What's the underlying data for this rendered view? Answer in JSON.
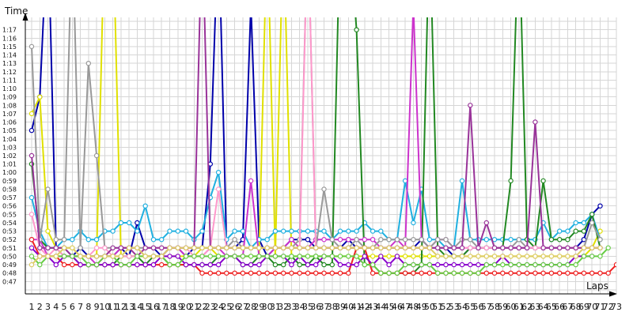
{
  "chart_data": {
    "type": "line",
    "ylabel": "Time",
    "xlabel": "Laps",
    "x": [
      1,
      2,
      3,
      4,
      5,
      6,
      7,
      8,
      9,
      10,
      11,
      12,
      13,
      14,
      15,
      16,
      17,
      18,
      19,
      20,
      21,
      22,
      23,
      24,
      25,
      26,
      27,
      28,
      29,
      30,
      31,
      32,
      33,
      34,
      35,
      36,
      37,
      38,
      39,
      40,
      41,
      42,
      43,
      44,
      45,
      46,
      47,
      48,
      49,
      50,
      51,
      52,
      53,
      54,
      55,
      56,
      57,
      58,
      59,
      60,
      61,
      62,
      63,
      64,
      65,
      66,
      67,
      68,
      69,
      70,
      71,
      72,
      73
    ],
    "xlim": [
      1,
      73
    ],
    "ylim": [
      46,
      80
    ],
    "y_ticks": [
      "0:47",
      "0:48",
      "0:49",
      "0:50",
      "0:51",
      "0:52",
      "0:53",
      "0:54",
      "0:55",
      "0:56",
      "0:57",
      "0:58",
      "0:59",
      "1:00",
      "1:01",
      "1:02",
      "1:03",
      "1:04",
      "1:05",
      "1:06",
      "1:07",
      "1:08",
      "1:09",
      "1:10",
      "1:11",
      "1:12",
      "1:13",
      "1:14",
      "1:15",
      "1:16",
      "1:17"
    ],
    "grid": true,
    "series": [
      {
        "color": "#0000aa",
        "values": [
          65,
          69,
          90,
          51,
          51,
          50,
          51,
          50,
          50,
          50,
          50,
          51,
          50,
          54,
          51,
          51,
          50,
          51,
          51,
          50,
          51,
          51,
          61,
          90,
          51,
          51,
          52,
          80,
          52,
          50,
          51,
          51,
          52,
          52,
          52,
          51,
          51,
          51,
          51,
          52,
          51,
          51,
          51,
          51,
          51,
          51,
          51,
          51,
          52,
          51,
          51,
          51,
          50,
          50,
          51,
          51,
          51,
          51,
          51,
          51,
          51,
          51,
          51,
          51,
          51,
          51,
          51,
          51,
          52,
          55,
          56,
          null,
          null
        ]
      },
      {
        "color": "#e0e000",
        "values": [
          67,
          69,
          53,
          51,
          51,
          51,
          50,
          50,
          50,
          90,
          90,
          50,
          50,
          50,
          50,
          50,
          50,
          50,
          50,
          50,
          50,
          51,
          51,
          50,
          50,
          50,
          50,
          50,
          50,
          90,
          50,
          90,
          50,
          50,
          50,
          50,
          50,
          50,
          50,
          50,
          50,
          50,
          50,
          50,
          50,
          50,
          50,
          50,
          50,
          50,
          50,
          50,
          50,
          50,
          50,
          50,
          50,
          50,
          50,
          50,
          50,
          50,
          50,
          50,
          50,
          50,
          50,
          50,
          50,
          51,
          53,
          null,
          null
        ]
      },
      {
        "color": "#20b0e0",
        "values": [
          57,
          53,
          51,
          51,
          52,
          52,
          53,
          52,
          52,
          53,
          53,
          54,
          54,
          53,
          56,
          52,
          52,
          53,
          53,
          53,
          52,
          53,
          57,
          60,
          52,
          53,
          53,
          51,
          52,
          52,
          53,
          53,
          53,
          53,
          53,
          53,
          53,
          52,
          53,
          53,
          53,
          54,
          53,
          53,
          52,
          52,
          59,
          54,
          58,
          52,
          52,
          51,
          51,
          59,
          52,
          52,
          52,
          52,
          52,
          52,
          52,
          52,
          52,
          54,
          52,
          53,
          53,
          54,
          54,
          55,
          52,
          null,
          null
        ]
      },
      {
        "color": "#228822",
        "values": [
          61,
          52,
          51,
          51,
          50,
          50,
          49,
          49,
          49,
          49,
          49,
          50,
          50,
          50,
          49,
          50,
          50,
          49,
          49,
          49,
          49,
          49,
          49,
          50,
          50,
          50,
          49,
          49,
          50,
          50,
          49,
          49,
          50,
          49,
          49,
          50,
          49,
          49,
          90,
          90,
          77,
          49,
          49,
          48,
          48,
          48,
          48,
          48,
          49,
          90,
          51,
          50,
          50,
          50,
          51,
          51,
          51,
          51,
          51,
          59,
          90,
          52,
          51,
          59,
          52,
          52,
          52,
          53,
          53,
          55,
          51,
          null,
          null
        ]
      },
      {
        "color": "#cc33cc",
        "values": [
          52,
          52,
          50,
          50,
          50,
          50,
          50,
          50,
          49,
          50,
          50,
          51,
          51,
          51,
          50,
          50,
          50,
          51,
          51,
          50,
          50,
          50,
          51,
          51,
          50,
          50,
          50,
          59,
          50,
          50,
          51,
          51,
          52,
          51,
          51,
          52,
          52,
          52,
          52,
          52,
          52,
          52,
          52,
          51,
          51,
          52,
          51,
          80,
          52,
          51,
          52,
          52,
          51,
          51,
          51,
          51,
          51,
          51,
          51,
          51,
          51,
          51,
          51,
          51,
          51,
          51,
          51,
          51,
          51,
          51,
          51,
          null,
          null
        ]
      },
      {
        "color": "#999999",
        "values": [
          75,
          52,
          58,
          52,
          52,
          90,
          51,
          73,
          62,
          51,
          51,
          51,
          51,
          51,
          51,
          51,
          51,
          51,
          51,
          51,
          51,
          51,
          51,
          51,
          51,
          52,
          51,
          51,
          51,
          51,
          51,
          51,
          51,
          52,
          90,
          51,
          58,
          52,
          51,
          51,
          52,
          51,
          51,
          52,
          52,
          52,
          52,
          52,
          52,
          51,
          52,
          52,
          51,
          52,
          52,
          51,
          51,
          51,
          51,
          51,
          52,
          51,
          51,
          51,
          51,
          51,
          51,
          51,
          51,
          54,
          52,
          null,
          null
        ]
      },
      {
        "color": "#ff99cc",
        "values": [
          55,
          51,
          50,
          51,
          50,
          50,
          50,
          50,
          51,
          51,
          50,
          50,
          50,
          50,
          51,
          51,
          51,
          51,
          51,
          51,
          50,
          50,
          51,
          58,
          51,
          51,
          51,
          51,
          51,
          51,
          51,
          51,
          51,
          51,
          90,
          51,
          51,
          51,
          51,
          51,
          51,
          51,
          51,
          51,
          51,
          51,
          51,
          51,
          51,
          51,
          51,
          51,
          51,
          51,
          51,
          51,
          51,
          51,
          51,
          51,
          51,
          51,
          51,
          51,
          51,
          51,
          51,
          51,
          51,
          51,
          51,
          null,
          null
        ]
      },
      {
        "color": "#993399",
        "values": [
          62,
          51,
          51,
          51,
          51,
          50,
          50,
          50,
          50,
          50,
          51,
          51,
          51,
          50,
          51,
          51,
          51,
          51,
          51,
          51,
          51,
          90,
          51,
          51,
          51,
          51,
          51,
          51,
          51,
          51,
          51,
          51,
          51,
          51,
          51,
          51,
          51,
          51,
          51,
          51,
          51,
          51,
          51,
          51,
          51,
          51,
          51,
          51,
          51,
          51,
          51,
          51,
          51,
          51,
          68,
          51,
          54,
          51,
          51,
          51,
          51,
          51,
          66,
          51,
          51,
          51,
          51,
          51,
          51,
          51,
          51,
          null,
          null
        ]
      },
      {
        "color": "#ee2222",
        "values": [
          52,
          50,
          50,
          50,
          49,
          49,
          49,
          49,
          49,
          49,
          49,
          49,
          49,
          49,
          49,
          49,
          49,
          49,
          49,
          49,
          49,
          48,
          48,
          48,
          48,
          48,
          48,
          48,
          48,
          48,
          48,
          48,
          48,
          48,
          48,
          48,
          48,
          48,
          48,
          48,
          51,
          51,
          48,
          48,
          48,
          48,
          48,
          48,
          48,
          48,
          48,
          48,
          48,
          48,
          48,
          48,
          48,
          48,
          48,
          48,
          48,
          48,
          48,
          48,
          48,
          48,
          48,
          48,
          48,
          48,
          48,
          48,
          49
        ]
      },
      {
        "color": "#8800cc",
        "values": [
          51,
          50,
          50,
          49,
          50,
          50,
          49,
          49,
          49,
          49,
          49,
          49,
          49,
          49,
          49,
          49,
          50,
          50,
          50,
          49,
          49,
          49,
          49,
          49,
          50,
          50,
          49,
          49,
          49,
          50,
          50,
          50,
          49,
          50,
          49,
          49,
          50,
          50,
          49,
          49,
          49,
          50,
          49,
          50,
          49,
          50,
          49,
          49,
          49,
          49,
          49,
          49,
          49,
          49,
          49,
          49,
          49,
          49,
          50,
          49,
          49,
          49,
          49,
          49,
          49,
          49,
          49,
          50,
          50,
          50,
          null,
          null,
          null
        ]
      },
      {
        "color": "#66cc44",
        "values": [
          50,
          49,
          50,
          50,
          50,
          50,
          50,
          49,
          49,
          50,
          50,
          49,
          49,
          50,
          50,
          50,
          50,
          49,
          49,
          50,
          50,
          50,
          50,
          50,
          50,
          50,
          50,
          50,
          50,
          50,
          50,
          50,
          50,
          50,
          50,
          50,
          50,
          50,
          50,
          50,
          50,
          49,
          49,
          48,
          48,
          48,
          49,
          49,
          49,
          49,
          48,
          48,
          48,
          48,
          48,
          48,
          49,
          49,
          49,
          49,
          49,
          49,
          49,
          49,
          49,
          49,
          49,
          49,
          50,
          50,
          50,
          51,
          null
        ]
      },
      {
        "color": "#ddcc66",
        "values": [
          49,
          50,
          50,
          50,
          51,
          51,
          50,
          50,
          50,
          50,
          50,
          50,
          51,
          51,
          50,
          50,
          50,
          51,
          51,
          51,
          51,
          51,
          51,
          51,
          51,
          51,
          51,
          51,
          51,
          51,
          51,
          51,
          51,
          51,
          51,
          51,
          51,
          51,
          51,
          51,
          51,
          51,
          51,
          51,
          51,
          51,
          51,
          51,
          51,
          51,
          50,
          50,
          50,
          50,
          50,
          50,
          50,
          50,
          50,
          50,
          50,
          50,
          50,
          50,
          50,
          50,
          50,
          50,
          51,
          51,
          51,
          null,
          null
        ]
      }
    ]
  }
}
